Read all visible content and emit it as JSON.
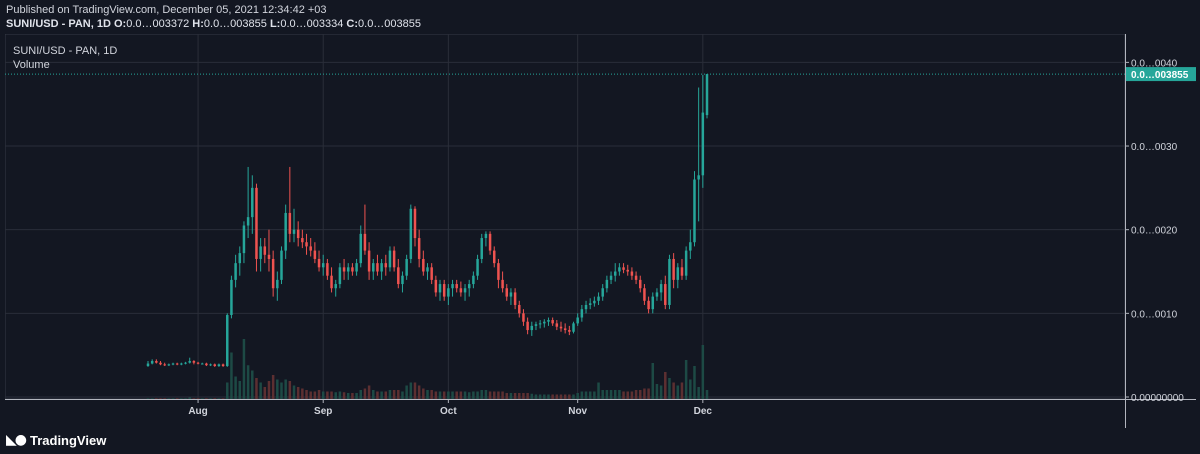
{
  "header": {
    "published": "Published on TradingView.com, December 05, 2021 12:34:42 +03",
    "symbol": "SUNI/USD - PAN, 1D",
    "o_label": "O:",
    "o_value": "0.0…003372",
    "h_label": "H:",
    "h_value": "0.0…003855",
    "l_label": "L:",
    "l_value": "0.0…003334",
    "c_label": "C:",
    "c_value": "0.0…003855"
  },
  "legend": {
    "symbol": "SUNI/USD - PAN, 1D",
    "volume": "Volume"
  },
  "branding": {
    "logo_text": "TradingView",
    "logo_icon": "tradingview-logo-icon"
  },
  "colors": {
    "background": "#131722",
    "up": "#26a69a",
    "down": "#ef5350",
    "up_vol": "#1d4a45",
    "down_vol": "#5c2f31",
    "grid": "#2a2e39",
    "text": "#d1d4dc"
  },
  "chart_data": {
    "type": "candlestick",
    "title": "SUNI/USD - PAN, 1D",
    "x_ticks": [
      "Aug",
      "Sep",
      "Oct",
      "Nov",
      "Dec"
    ],
    "y_ticks": [
      "0.0…0040",
      "0.0…0030",
      "0.0…0020",
      "0.0…0010",
      "0.00000000"
    ],
    "last_price_label": "0.0…003855",
    "ylim": [
      0,
      0.00041
    ],
    "grid": true,
    "candles": [
      [
        3.7e-05,
        4.3e-05,
        3.6e-05,
        4e-05,
        1
      ],
      [
        4e-05,
        4.5e-05,
        3.9e-05,
        4.3e-05,
        1
      ],
      [
        4.3e-05,
        4.5e-05,
        4e-05,
        4.1e-05,
        1
      ],
      [
        4.1e-05,
        4.3e-05,
        3.8e-05,
        3.9e-05,
        1
      ],
      [
        3.9e-05,
        4.1e-05,
        3.7e-05,
        3.8e-05,
        1
      ],
      [
        3.8e-05,
        4e-05,
        3.7e-05,
        3.9e-05,
        1
      ],
      [
        3.9e-05,
        4.1e-05,
        3.8e-05,
        4e-05,
        1
      ],
      [
        4e-05,
        4.1e-05,
        3.8e-05,
        3.9e-05,
        1
      ],
      [
        3.9e-05,
        4.1e-05,
        3.8e-05,
        4e-05,
        1
      ],
      [
        4e-05,
        4.2e-05,
        3.9e-05,
        4.1e-05,
        1
      ],
      [
        4.1e-05,
        4.7e-05,
        4e-05,
        4.3e-05,
        2
      ],
      [
        4.3e-05,
        4.4e-05,
        3.9e-05,
        4.1e-05,
        1
      ],
      [
        4.1e-05,
        4.2e-05,
        3.9e-05,
        4e-05,
        1
      ],
      [
        4e-05,
        4.1e-05,
        3.9e-05,
        4e-05,
        1
      ],
      [
        4e-05,
        4.1e-05,
        3.7e-05,
        3.8e-05,
        1
      ],
      [
        3.8e-05,
        4e-05,
        3.7e-05,
        3.9e-05,
        1
      ],
      [
        3.9e-05,
        4e-05,
        3.6e-05,
        3.7e-05,
        1
      ],
      [
        3.7e-05,
        4e-05,
        3.6e-05,
        3.9e-05,
        1
      ],
      [
        3.9e-05,
        4e-05,
        3.6e-05,
        3.7e-05,
        1
      ],
      [
        3.7e-05,
        0.0001,
        3.6e-05,
        9.8e-05,
        22
      ],
      [
        9.8e-05,
        0.000145,
        9.4e-05,
        0.00014,
        62
      ],
      [
        0.00014,
        0.00017,
        0.000131,
        0.00016,
        30
      ],
      [
        0.00016,
        0.00018,
        0.000145,
        0.000172,
        24
      ],
      [
        0.000172,
        0.00021,
        0.00016,
        0.000205,
        80
      ],
      [
        0.000205,
        0.000275,
        0.00019,
        0.000215,
        45
      ],
      [
        0.000215,
        0.000265,
        0.000195,
        0.00025,
        38
      ],
      [
        0.00025,
        0.000255,
        0.00015,
        0.000165,
        28
      ],
      [
        0.000165,
        0.00019,
        0.00015,
        0.00018,
        22
      ],
      [
        0.00018,
        0.00019,
        0.00016,
        0.00017,
        16
      ],
      [
        0.00017,
        0.0002,
        0.00015,
        0.000165,
        24
      ],
      [
        0.000165,
        0.000175,
        0.00012,
        0.00013,
        32
      ],
      [
        0.00013,
        0.00015,
        0.000115,
        0.00014,
        26
      ],
      [
        0.00014,
        0.00018,
        0.000135,
        0.000175,
        22
      ],
      [
        0.000175,
        0.00023,
        0.000165,
        0.00022,
        26
      ],
      [
        0.00022,
        0.000275,
        0.000185,
        0.000195,
        24
      ],
      [
        0.000195,
        0.000225,
        0.000185,
        0.0002,
        18
      ],
      [
        0.0002,
        0.00021,
        0.00018,
        0.00019,
        16
      ],
      [
        0.00019,
        0.0002,
        0.000178,
        0.000185,
        14
      ],
      [
        0.000185,
        0.000195,
        0.00017,
        0.00018,
        12
      ],
      [
        0.00018,
        0.00019,
        0.000168,
        0.000175,
        10
      ],
      [
        0.000175,
        0.000185,
        0.00016,
        0.000165,
        10
      ],
      [
        0.000165,
        0.000175,
        0.00015,
        0.000155,
        12
      ],
      [
        0.000155,
        0.00017,
        0.000145,
        0.00016,
        10
      ],
      [
        0.00016,
        0.000165,
        0.00014,
        0.000145,
        10
      ],
      [
        0.000145,
        0.000155,
        0.000125,
        0.00013,
        10
      ],
      [
        0.00013,
        0.00014,
        0.00012,
        0.000135,
        9
      ],
      [
        0.000135,
        0.00016,
        0.00013,
        0.000155,
        10
      ],
      [
        0.000155,
        0.000165,
        0.00014,
        0.00015,
        9
      ],
      [
        0.00015,
        0.00016,
        0.00014,
        0.000155,
        8
      ],
      [
        0.000155,
        0.00016,
        0.000145,
        0.00015,
        8
      ],
      [
        0.00015,
        0.000165,
        0.000145,
        0.00016,
        8
      ],
      [
        0.00016,
        0.000205,
        0.000155,
        0.000195,
        12
      ],
      [
        0.000195,
        0.00023,
        0.00017,
        0.000175,
        14
      ],
      [
        0.000175,
        0.000185,
        0.00014,
        0.00015,
        18
      ],
      [
        0.00015,
        0.000165,
        0.00014,
        0.00016,
        12
      ],
      [
        0.00016,
        0.00017,
        0.000145,
        0.00015,
        10
      ],
      [
        0.00015,
        0.000165,
        0.00014,
        0.00016,
        10
      ],
      [
        0.00016,
        0.00017,
        0.000145,
        0.000155,
        10
      ],
      [
        0.000155,
        0.00018,
        0.00015,
        0.000175,
        12
      ],
      [
        0.000175,
        0.00018,
        0.00015,
        0.000155,
        12
      ],
      [
        0.000155,
        0.000165,
        0.00013,
        0.000135,
        12
      ],
      [
        0.000135,
        0.00015,
        0.000125,
        0.000145,
        10
      ],
      [
        0.000145,
        0.00017,
        0.00014,
        0.000165,
        18
      ],
      [
        0.000165,
        0.00023,
        0.00016,
        0.000225,
        22
      ],
      [
        0.000225,
        0.000228,
        0.00018,
        0.00019,
        22
      ],
      [
        0.00019,
        0.0002,
        0.000155,
        0.000165,
        18
      ],
      [
        0.000165,
        0.000175,
        0.000145,
        0.00015,
        14
      ],
      [
        0.00015,
        0.00016,
        0.00014,
        0.000155,
        12
      ],
      [
        0.000155,
        0.00016,
        0.000135,
        0.00014,
        12
      ],
      [
        0.00014,
        0.000145,
        0.00012,
        0.000125,
        10
      ],
      [
        0.000125,
        0.00014,
        0.000115,
        0.000135,
        10
      ],
      [
        0.000135,
        0.00014,
        0.000115,
        0.00012,
        10
      ],
      [
        0.00012,
        0.000135,
        0.00011,
        0.00013,
        10
      ],
      [
        0.00013,
        0.00014,
        0.00012,
        0.000135,
        10
      ],
      [
        0.000135,
        0.00014,
        0.000125,
        0.00013,
        10
      ],
      [
        0.00013,
        0.000138,
        0.00012,
        0.000125,
        10
      ],
      [
        0.000125,
        0.000135,
        0.000115,
        0.00013,
        10
      ],
      [
        0.00013,
        0.00014,
        0.00012,
        0.000135,
        9
      ],
      [
        0.000135,
        0.00015,
        0.00013,
        0.000145,
        10
      ],
      [
        0.000145,
        0.00017,
        0.00014,
        0.000165,
        10
      ],
      [
        0.000165,
        0.000195,
        0.00016,
        0.00019,
        12
      ],
      [
        0.00019,
        0.000198,
        0.00018,
        0.000195,
        12
      ],
      [
        0.000195,
        0.000198,
        0.00017,
        0.000175,
        10
      ],
      [
        0.000175,
        0.00018,
        0.000155,
        0.00016,
        10
      ],
      [
        0.00016,
        0.000165,
        0.00013,
        0.00014,
        10
      ],
      [
        0.00014,
        0.00015,
        0.000125,
        0.00013,
        10
      ],
      [
        0.00013,
        0.000135,
        0.000115,
        0.00012,
        8
      ],
      [
        0.00012,
        0.00013,
        0.00011,
        0.000125,
        8
      ],
      [
        0.000125,
        0.00013,
        0.000105,
        0.00011,
        8
      ],
      [
        0.00011,
        0.000115,
        9.5e-05,
        0.0001,
        8
      ],
      [
        0.0001,
        0.000105,
        8.5e-05,
        9e-05,
        8
      ],
      [
        9e-05,
        9.5e-05,
        7.5e-05,
        8e-05,
        8
      ],
      [
        8e-05,
        9e-05,
        7.3e-05,
        8.5e-05,
        7
      ],
      [
        8.5e-05,
        9e-05,
        8e-05,
        8.7e-05,
        6
      ],
      [
        8.7e-05,
        9.2e-05,
        8.2e-05,
        8.8e-05,
        6
      ],
      [
        8.8e-05,
        9.3e-05,
        8.3e-05,
        9e-05,
        6
      ],
      [
        9e-05,
        9.5e-05,
        8.5e-05,
        9.2e-05,
        6
      ],
      [
        9.2e-05,
        9.5e-05,
        8.5e-05,
        8.8e-05,
        6
      ],
      [
        8.8e-05,
        9.2e-05,
        8e-05,
        8.4e-05,
        6
      ],
      [
        8.4e-05,
        9e-05,
        7.8e-05,
        8.2e-05,
        6
      ],
      [
        8.2e-05,
        8.8e-05,
        7.6e-05,
        8e-05,
        6
      ],
      [
        8e-05,
        8.5e-05,
        7.4e-05,
        7.8e-05,
        6
      ],
      [
        7.8e-05,
        9e-05,
        7.6e-05,
        8.8e-05,
        6
      ],
      [
        8.8e-05,
        0.0001,
        8.5e-05,
        9.5e-05,
        8
      ],
      [
        9.5e-05,
        0.00011,
        9e-05,
        0.000105,
        10
      ],
      [
        0.000105,
        0.000115,
        0.0001,
        0.00011,
        10
      ],
      [
        0.00011,
        0.000118,
        0.000105,
        0.000112,
        10
      ],
      [
        0.000112,
        0.00012,
        0.000108,
        0.000115,
        10
      ],
      [
        0.000115,
        0.000125,
        0.00011,
        0.00012,
        22
      ],
      [
        0.00012,
        0.000135,
        0.000115,
        0.00013,
        12
      ],
      [
        0.00013,
        0.000145,
        0.000125,
        0.00014,
        12
      ],
      [
        0.00014,
        0.00015,
        0.000135,
        0.000145,
        12
      ],
      [
        0.000145,
        0.00016,
        0.000138,
        0.00015,
        12
      ],
      [
        0.00015,
        0.00016,
        0.000145,
        0.000155,
        12
      ],
      [
        0.000155,
        0.00016,
        0.000148,
        0.000152,
        10
      ],
      [
        0.000152,
        0.000158,
        0.000145,
        0.00015,
        10
      ],
      [
        0.00015,
        0.000155,
        0.00014,
        0.000145,
        10
      ],
      [
        0.000145,
        0.00015,
        0.000135,
        0.00014,
        12
      ],
      [
        0.00014,
        0.000145,
        0.000125,
        0.00013,
        12
      ],
      [
        0.00013,
        0.000135,
        0.00011,
        0.000115,
        14
      ],
      [
        0.000115,
        0.00012,
        0.0001,
        0.000105,
        14
      ],
      [
        0.000105,
        0.000125,
        0.0001,
        0.00012,
        48
      ],
      [
        0.00012,
        0.00013,
        0.000115,
        0.000125,
        20
      ],
      [
        0.000125,
        0.00014,
        0.000115,
        0.000135,
        18
      ],
      [
        0.000135,
        0.000145,
        0.000105,
        0.00011,
        36
      ],
      [
        0.00011,
        0.00017,
        0.000105,
        0.000165,
        28
      ],
      [
        0.000165,
        0.000172,
        0.00013,
        0.00014,
        22
      ],
      [
        0.00014,
        0.00016,
        0.00013,
        0.000155,
        18
      ],
      [
        0.000155,
        0.000165,
        0.00014,
        0.000145,
        22
      ],
      [
        0.000145,
        0.00018,
        0.00014,
        0.000175,
        52
      ],
      [
        0.000175,
        0.0002,
        0.000165,
        0.000185,
        26
      ],
      [
        0.000185,
        0.00027,
        0.00018,
        0.00026,
        44
      ],
      [
        0.00026,
        0.00037,
        0.00021,
        0.000265,
        16
      ],
      [
        0.000265,
        0.000385,
        0.00025,
        0.00034,
        72
      ],
      [
        0.000337,
        0.000386,
        0.000333,
        0.000386,
        12
      ]
    ],
    "volume_label": "Volume"
  }
}
